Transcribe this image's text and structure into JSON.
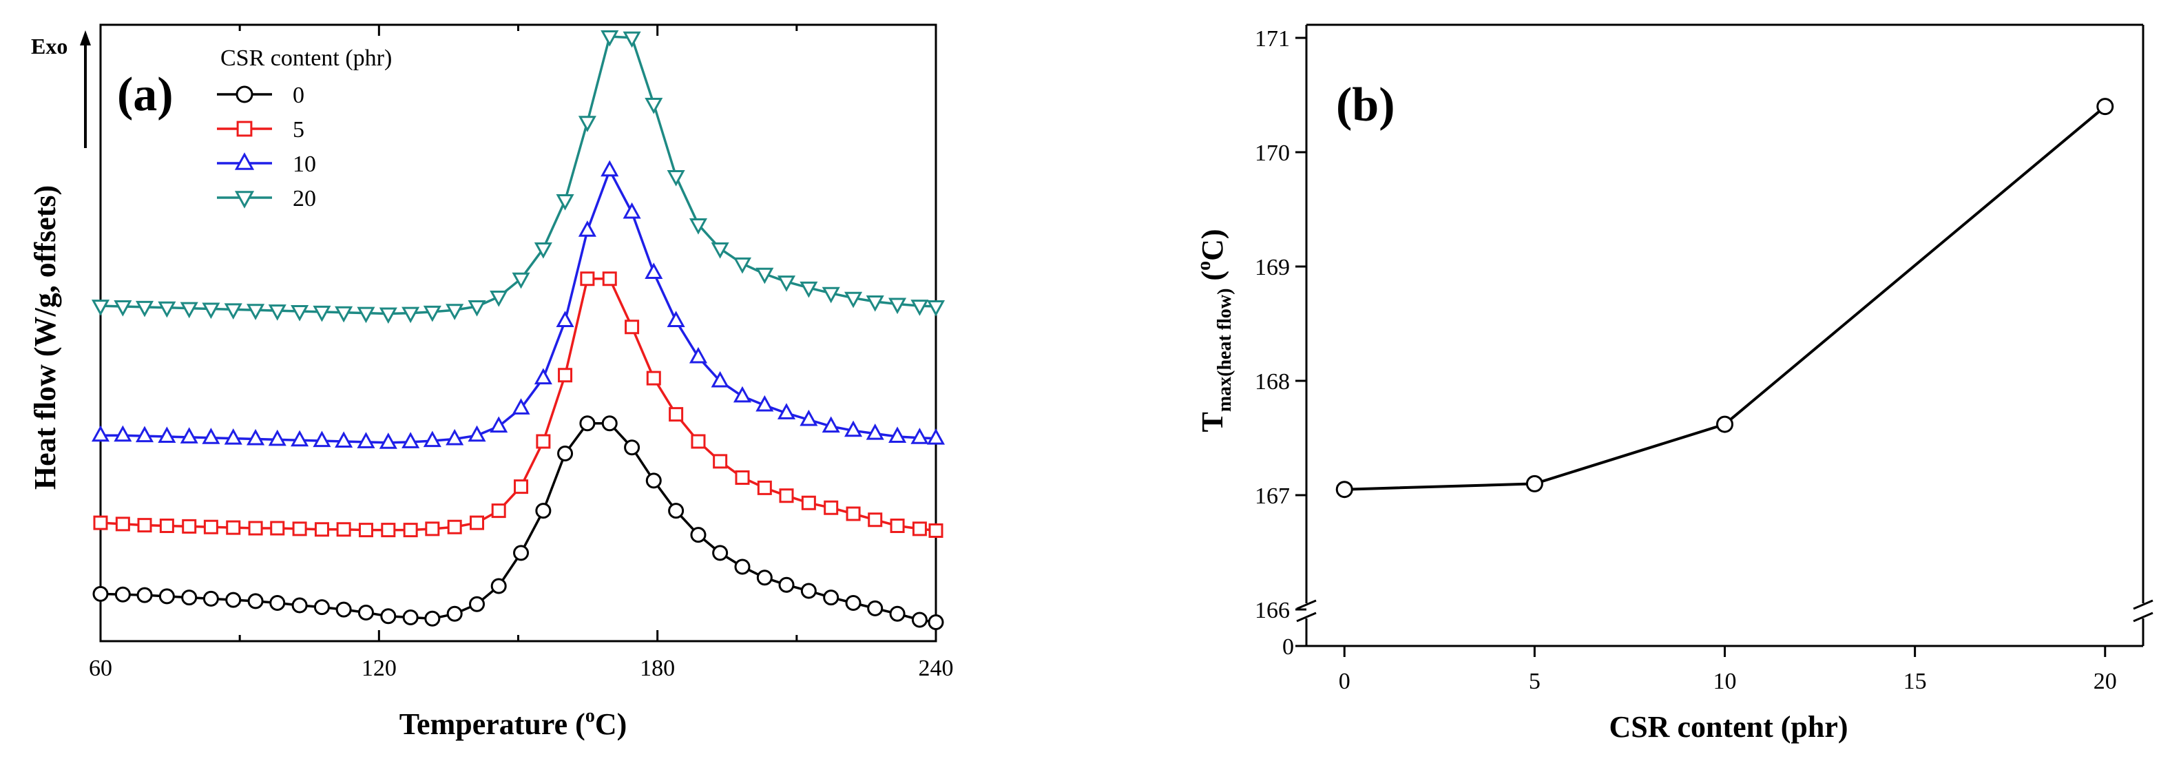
{
  "chart_data": [
    {
      "type": "line",
      "panel_label": "(a)",
      "xlabel": "Temperature (",
      "xlabel_sup": "o",
      "xlabel_end": "C)",
      "ylabel": "Heat flow (W/g, offsets)",
      "exo_label": "Exo",
      "legend_title": "CSR content (phr)",
      "xlim": [
        60,
        240
      ],
      "ylim": [
        0,
        1
      ],
      "xticks": [
        60,
        120,
        180,
        240
      ],
      "xtick_labels": [
        "60",
        "120",
        "180",
        "240"
      ],
      "series": [
        {
          "name": "0",
          "color": "#000000",
          "marker": "circle",
          "x": [
            60,
            64.8,
            69.5,
            74.3,
            79.1,
            83.8,
            88.6,
            93.4,
            98.1,
            102.9,
            107.7,
            112.4,
            117.2,
            122,
            126.8,
            131.5,
            136.3,
            141.1,
            145.8,
            150.6,
            155.4,
            160.1,
            164.9,
            169.7,
            174.5,
            179.2,
            184,
            188.8,
            193.5,
            198.3,
            203.1,
            207.8,
            212.6,
            217.4,
            222.2,
            226.9,
            231.7,
            236.5,
            240
          ],
          "y": [
            0.067,
            0.066,
            0.065,
            0.063,
            0.061,
            0.059,
            0.057,
            0.055,
            0.052,
            0.048,
            0.045,
            0.041,
            0.036,
            0.03,
            0.028,
            0.026,
            0.034,
            0.05,
            0.08,
            0.135,
            0.205,
            0.3,
            0.35,
            0.35,
            0.31,
            0.255,
            0.205,
            0.165,
            0.135,
            0.112,
            0.094,
            0.082,
            0.072,
            0.061,
            0.052,
            0.043,
            0.034,
            0.024,
            0.02
          ]
        },
        {
          "name": "5",
          "color": "#ee1c1c",
          "marker": "square",
          "x": [
            60,
            64.8,
            69.5,
            74.3,
            79.1,
            83.8,
            88.6,
            93.4,
            98.1,
            102.9,
            107.7,
            112.4,
            117.2,
            122,
            126.8,
            131.5,
            136.3,
            141.1,
            145.8,
            150.6,
            155.4,
            160.1,
            164.9,
            169.7,
            174.5,
            179.2,
            184,
            188.8,
            193.5,
            198.3,
            203.1,
            207.8,
            212.6,
            217.4,
            222.2,
            226.9,
            231.7,
            236.5,
            240
          ],
          "y": [
            0.185,
            0.183,
            0.181,
            0.18,
            0.179,
            0.178,
            0.177,
            0.176,
            0.176,
            0.175,
            0.174,
            0.174,
            0.173,
            0.173,
            0.173,
            0.175,
            0.178,
            0.185,
            0.205,
            0.245,
            0.32,
            0.43,
            0.59,
            0.59,
            0.51,
            0.425,
            0.365,
            0.32,
            0.287,
            0.26,
            0.243,
            0.23,
            0.218,
            0.21,
            0.2,
            0.19,
            0.18,
            0.175,
            0.172
          ]
        },
        {
          "name": "10",
          "color": "#1f1fe8",
          "marker": "triangle-up",
          "x": [
            60,
            64.8,
            69.5,
            74.3,
            79.1,
            83.8,
            88.6,
            93.4,
            98.1,
            102.9,
            107.7,
            112.4,
            117.2,
            122,
            126.8,
            131.5,
            136.3,
            141.1,
            145.8,
            150.6,
            155.4,
            160.1,
            164.9,
            169.7,
            174.5,
            179.2,
            184,
            188.8,
            193.5,
            198.3,
            203.1,
            207.8,
            212.6,
            217.4,
            222.2,
            226.9,
            231.7,
            236.5,
            240
          ],
          "y": [
            0.33,
            0.33,
            0.329,
            0.328,
            0.327,
            0.326,
            0.325,
            0.324,
            0.323,
            0.322,
            0.321,
            0.32,
            0.319,
            0.318,
            0.319,
            0.321,
            0.324,
            0.33,
            0.345,
            0.375,
            0.425,
            0.52,
            0.67,
            0.77,
            0.7,
            0.6,
            0.52,
            0.46,
            0.42,
            0.395,
            0.38,
            0.367,
            0.356,
            0.345,
            0.338,
            0.333,
            0.328,
            0.326,
            0.325
          ]
        },
        {
          "name": "20",
          "color": "#1e8a84",
          "marker": "triangle-down",
          "x": [
            60,
            64.8,
            69.5,
            74.3,
            79.1,
            83.8,
            88.6,
            93.4,
            98.1,
            102.9,
            107.7,
            112.4,
            117.2,
            122,
            126.8,
            131.5,
            136.3,
            141.1,
            145.8,
            150.6,
            155.4,
            160.1,
            164.9,
            169.7,
            174.5,
            179.2,
            184,
            188.8,
            193.5,
            198.3,
            203.1,
            207.8,
            212.6,
            217.4,
            222.2,
            226.9,
            231.7,
            236.5,
            240
          ],
          "y": [
            0.545,
            0.544,
            0.543,
            0.542,
            0.541,
            0.54,
            0.539,
            0.538,
            0.537,
            0.536,
            0.535,
            0.534,
            0.533,
            0.532,
            0.533,
            0.535,
            0.538,
            0.544,
            0.56,
            0.59,
            0.64,
            0.72,
            0.85,
            0.992,
            0.99,
            0.88,
            0.76,
            0.68,
            0.64,
            0.615,
            0.598,
            0.585,
            0.575,
            0.566,
            0.558,
            0.552,
            0.548,
            0.545,
            0.544
          ]
        }
      ]
    },
    {
      "type": "line",
      "panel_label": "(b)",
      "xlabel": "CSR content (phr)",
      "ylabel_main": "T",
      "ylabel_sub": "max(heat flow)",
      "ylabel_unit_open": " (",
      "ylabel_unit_sup": "o",
      "ylabel_unit_close": "C)",
      "xlim": [
        -1,
        21
      ],
      "xticks": [
        0,
        5,
        10,
        15,
        20
      ],
      "xtick_labels": [
        "0",
        "5",
        "10",
        "15",
        "20"
      ],
      "ylim": [
        166,
        171
      ],
      "yticks": [
        166,
        167,
        168,
        169,
        170,
        171
      ],
      "ytick_labels": [
        "166",
        "167",
        "168",
        "169",
        "170",
        "171"
      ],
      "ybreak_label": "0",
      "series": [
        {
          "name": "Tmax",
          "color": "#000000",
          "marker": "circle",
          "x": [
            0,
            5,
            10,
            20
          ],
          "y": [
            167.05,
            167.1,
            167.62,
            170.4
          ]
        }
      ]
    }
  ]
}
